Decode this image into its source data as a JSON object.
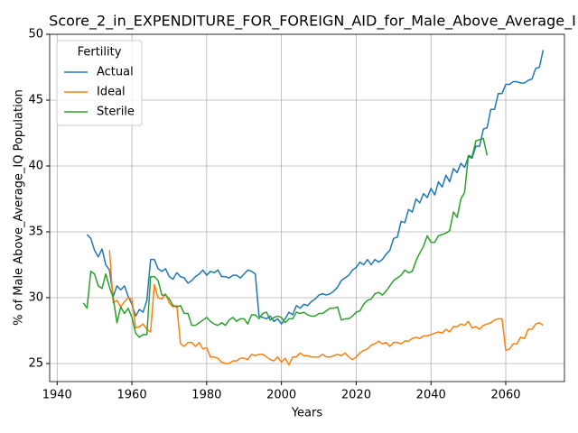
{
  "chart_data": {
    "type": "line",
    "title": "Score_2_in_EXPENDITURE_FOR_FOREIGN_AID_for_Male_Above_Average_I",
    "xlabel": "Years",
    "ylabel": "% of Male Above_Average_IQ Population",
    "legend_title": "Fertility",
    "legend": "upper left",
    "grid": true,
    "xlim": [
      1938,
      2075.7
    ],
    "ylim": [
      23.63,
      50
    ],
    "xticks": [
      1940,
      1960,
      1980,
      2000,
      2020,
      2040,
      2060
    ],
    "yticks": [
      25,
      30,
      35,
      40,
      45,
      50
    ],
    "x": [
      1947,
      1948,
      1949,
      1950,
      1951,
      1952,
      1953,
      1954,
      1955,
      1956,
      1957,
      1958,
      1959,
      1960,
      1961,
      1962,
      1963,
      1964,
      1965,
      1966,
      1967,
      1968,
      1969,
      1970,
      1971,
      1972,
      1973,
      1974,
      1975,
      1976,
      1977,
      1978,
      1979,
      1980,
      1981,
      1982,
      1983,
      1984,
      1985,
      1986,
      1987,
      1988,
      1989,
      1990,
      1991,
      1992,
      1993,
      1994,
      1995,
      1996,
      1997,
      1998,
      1999,
      2000,
      2001,
      2002,
      2003,
      2004,
      2005,
      2006,
      2007,
      2008,
      2009,
      2010,
      2011,
      2012,
      2013,
      2014,
      2015,
      2016,
      2017,
      2018,
      2019,
      2020,
      2021,
      2022,
      2023,
      2024,
      2025,
      2026,
      2027,
      2028,
      2029,
      2030,
      2031,
      2032,
      2033,
      2034,
      2035,
      2036,
      2037,
      2038,
      2039,
      2040,
      2041,
      2042,
      2043,
      2044,
      2045,
      2046,
      2047,
      2048,
      2049,
      2050,
      2051,
      2052,
      2053,
      2054,
      2055,
      2056,
      2057,
      2058,
      2059,
      2060,
      2061,
      2062,
      2063,
      2064,
      2065,
      2066,
      2067,
      2068,
      2069,
      2070
    ],
    "series": [
      {
        "name": "Actual",
        "color": "#1f77b4",
        "values": [
          null,
          34.8,
          34.5,
          33.6,
          33.1,
          33.7,
          32.5,
          32.1,
          30.1,
          30.9,
          30.6,
          30.9,
          30.1,
          29.5,
          28.6,
          29.1,
          28.9,
          29.8,
          32.9,
          32.9,
          32.2,
          32.0,
          32.2,
          31.6,
          31.4,
          31.9,
          31.6,
          31.5,
          31.1,
          31.3,
          31.6,
          31.8,
          32.1,
          31.7,
          32.0,
          31.9,
          32.1,
          31.6,
          31.6,
          31.5,
          31.7,
          31.7,
          31.5,
          31.8,
          32.1,
          32.0,
          31.8,
          28.6,
          28.5,
          28.4,
          28.6,
          28.2,
          28.4,
          28.0,
          28.4,
          28.9,
          28.7,
          29.4,
          29.2,
          29.5,
          29.4,
          29.7,
          29.9,
          30.2,
          30.3,
          30.2,
          30.3,
          30.5,
          30.8,
          31.3,
          31.5,
          31.7,
          32.1,
          32.3,
          32.7,
          32.5,
          32.9,
          32.5,
          32.9,
          32.7,
          32.9,
          33.3,
          33.6,
          34.5,
          34.6,
          35.8,
          35.7,
          36.7,
          36.5,
          37.5,
          37.2,
          37.9,
          37.6,
          38.3,
          37.8,
          38.8,
          38.4,
          39.3,
          38.8,
          39.8,
          39.5,
          40.2,
          39.9,
          40.7,
          40.6,
          41.5,
          41.5,
          42.8,
          42.9,
          44.3,
          44.3,
          45.5,
          45.5,
          46.2,
          46.2,
          46.4,
          46.4,
          46.3,
          46.3,
          46.5,
          46.6,
          47.4,
          47.5,
          48.8
        ]
      },
      {
        "name": "Ideal",
        "color": "#ff7f0e",
        "values": [
          null,
          null,
          null,
          null,
          null,
          null,
          null,
          33.6,
          29.6,
          29.8,
          29.3,
          29.7,
          30.0,
          29.9,
          27.7,
          27.8,
          28.0,
          27.6,
          27.4,
          31.0,
          30.0,
          29.9,
          30.3,
          29.6,
          29.3,
          29.4,
          26.5,
          26.3,
          26.6,
          26.6,
          26.3,
          26.6,
          26.1,
          26.2,
          25.5,
          25.5,
          25.4,
          25.1,
          25.0,
          25.0,
          25.2,
          25.2,
          25.4,
          25.4,
          25.3,
          25.7,
          25.6,
          25.7,
          25.7,
          25.5,
          25.3,
          25.2,
          25.5,
          25.1,
          25.4,
          24.9,
          25.5,
          25.5,
          25.8,
          25.6,
          25.6,
          25.5,
          25.5,
          25.5,
          25.7,
          25.5,
          25.5,
          25.6,
          25.7,
          25.6,
          25.8,
          25.5,
          25.3,
          25.5,
          25.8,
          26.0,
          26.1,
          26.4,
          26.5,
          26.7,
          26.5,
          26.6,
          26.3,
          26.6,
          26.6,
          26.5,
          26.7,
          26.7,
          26.9,
          27.0,
          26.9,
          27.1,
          27.1,
          27.2,
          27.3,
          27.4,
          27.3,
          27.6,
          27.4,
          27.8,
          27.8,
          28.0,
          27.9,
          28.2,
          27.7,
          27.8,
          27.6,
          27.9,
          28.0,
          28.1,
          28.3,
          28.4,
          28.4,
          26.0,
          26.1,
          26.5,
          26.5,
          27.0,
          26.9,
          27.6,
          27.6,
          28.0,
          28.1,
          27.9
        ]
      },
      {
        "name": "Sterile",
        "color": "#2ca02c",
        "values": [
          29.6,
          29.2,
          32.0,
          31.8,
          30.9,
          30.7,
          31.8,
          30.8,
          30.0,
          28.1,
          29.3,
          28.8,
          29.2,
          28.5,
          27.3,
          27.0,
          27.2,
          27.2,
          31.6,
          31.6,
          31.3,
          30.2,
          30.2,
          29.9,
          29.4,
          29.3,
          29.4,
          28.8,
          28.8,
          27.9,
          27.9,
          28.1,
          28.3,
          28.5,
          28.2,
          28.0,
          27.9,
          28.1,
          27.9,
          28.3,
          28.5,
          28.2,
          28.4,
          28.4,
          28.0,
          28.7,
          28.7,
          28.4,
          28.8,
          28.9,
          28.3,
          28.5,
          28.6,
          28.5,
          28.1,
          28.4,
          28.4,
          28.9,
          28.8,
          28.9,
          28.7,
          28.6,
          28.6,
          28.8,
          28.8,
          29.0,
          29.2,
          29.2,
          29.3,
          28.3,
          28.4,
          28.4,
          28.6,
          28.9,
          29.0,
          29.5,
          29.8,
          29.9,
          30.3,
          30.4,
          30.2,
          30.5,
          30.9,
          31.3,
          31.5,
          31.7,
          32.1,
          31.9,
          32.0,
          32.8,
          33.4,
          33.9,
          34.7,
          34.2,
          34.2,
          34.7,
          34.8,
          34.9,
          35.1,
          36.5,
          36.1,
          37.5,
          38.0,
          40.8,
          40.7,
          41.9,
          42.0,
          42.1,
          40.8,
          null,
          null,
          null,
          null,
          null,
          null,
          null,
          null,
          null,
          null,
          null,
          null,
          null,
          null,
          null
        ]
      }
    ]
  }
}
